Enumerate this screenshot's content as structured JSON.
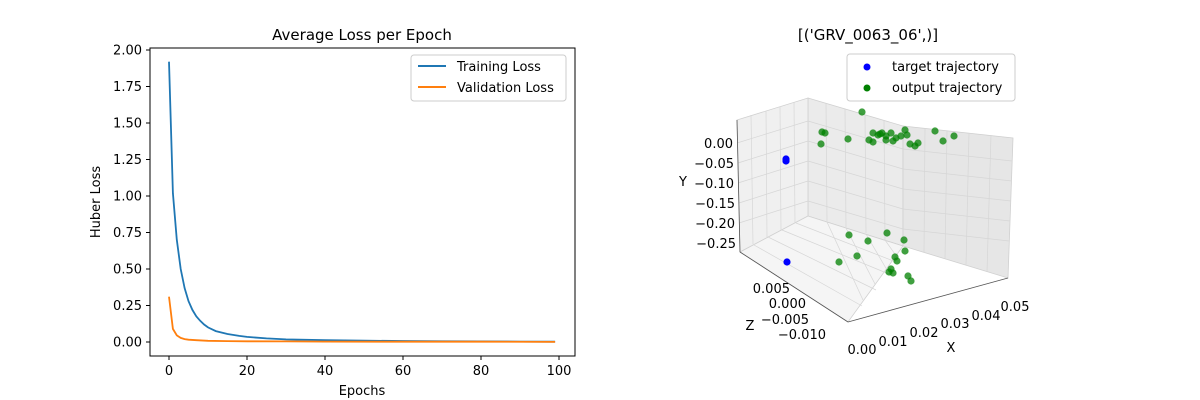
{
  "chart_data": [
    {
      "type": "line",
      "title": "Average Loss per Epoch",
      "xlabel": "Epochs",
      "ylabel": "Huber Loss",
      "xlim": [
        0,
        99
      ],
      "ylim": [
        0,
        2.0
      ],
      "x_ticks": [
        "0",
        "20",
        "40",
        "60",
        "80",
        "100"
      ],
      "y_ticks": [
        "0.00",
        "0.25",
        "0.50",
        "0.75",
        "1.00",
        "1.25",
        "1.50",
        "1.75",
        "2.00"
      ],
      "legend_position": "top-right",
      "grid": false,
      "series": [
        {
          "name": "Training Loss",
          "color": "#1f77b4",
          "points": [
            [
              0,
              1.92
            ],
            [
              1,
              1.02
            ],
            [
              2,
              0.7
            ],
            [
              3,
              0.5
            ],
            [
              4,
              0.37
            ],
            [
              5,
              0.28
            ],
            [
              6,
              0.22
            ],
            [
              7,
              0.175
            ],
            [
              8,
              0.145
            ],
            [
              9,
              0.12
            ],
            [
              10,
              0.1
            ],
            [
              12,
              0.075
            ],
            [
              15,
              0.055
            ],
            [
              18,
              0.042
            ],
            [
              20,
              0.035
            ],
            [
              25,
              0.025
            ],
            [
              30,
              0.018
            ],
            [
              40,
              0.012
            ],
            [
              50,
              0.009
            ],
            [
              60,
              0.007
            ],
            [
              70,
              0.005
            ],
            [
              80,
              0.004
            ],
            [
              90,
              0.003
            ],
            [
              99,
              0.002
            ]
          ]
        },
        {
          "name": "Validation Loss",
          "color": "#ff7f0e",
          "points": [
            [
              0,
              0.31
            ],
            [
              1,
              0.09
            ],
            [
              2,
              0.045
            ],
            [
              3,
              0.028
            ],
            [
              4,
              0.02
            ],
            [
              5,
              0.016
            ],
            [
              7,
              0.012
            ],
            [
              10,
              0.008
            ],
            [
              15,
              0.006
            ],
            [
              20,
              0.005
            ],
            [
              30,
              0.004
            ],
            [
              40,
              0.003
            ],
            [
              60,
              0.002
            ],
            [
              80,
              0.002
            ],
            [
              99,
              0.001
            ]
          ]
        }
      ]
    },
    {
      "type": "scatter",
      "title": "[('GRV_0063_06',)]",
      "xlabel": "X",
      "ylabel": "Y",
      "zlabel": "Z",
      "x_ticks": [
        "0.00",
        "0.01",
        "0.02",
        "0.03",
        "0.04",
        "0.05"
      ],
      "y_ticks": [
        "0.00",
        "−0.05",
        "−0.10",
        "−0.15",
        "−0.20",
        "−0.25"
      ],
      "z_ticks": [
        "0.005",
        "0.000",
        "−0.005",
        "−0.010"
      ],
      "legend_position": "top-right",
      "series": [
        {
          "name": "target trajectory",
          "color": "#0000ff",
          "count": 3
        },
        {
          "name": "output trajectory",
          "color": "#008000",
          "count": 39
        }
      ]
    }
  ]
}
